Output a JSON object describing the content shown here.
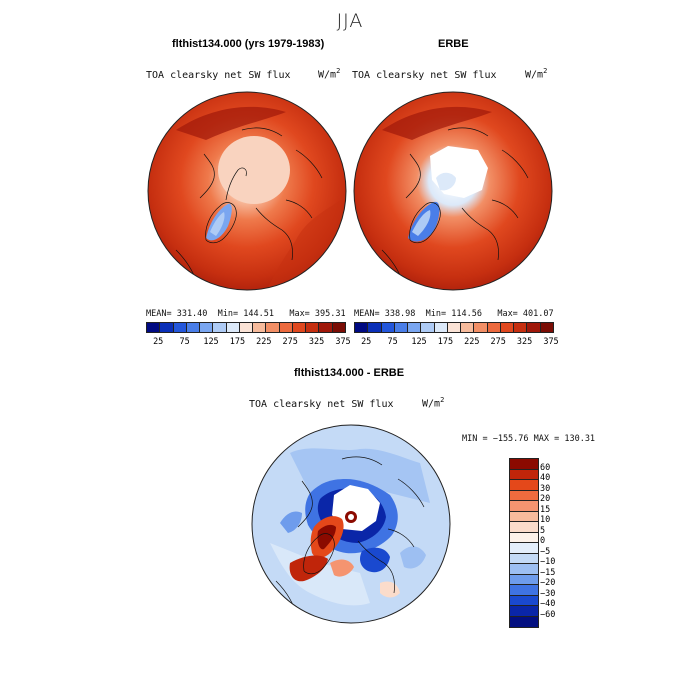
{
  "figure": {
    "season": "JJA",
    "units_base": "W/m",
    "units_exp": "2"
  },
  "panel_left": {
    "title": "flthist134.000 (yrs 1979-1983)",
    "subtitle": "TOA clearsky net SW flux",
    "mean": "MEAN= 331.40",
    "min": "Min= 144.51",
    "max": "Max= 395.31"
  },
  "panel_right": {
    "title": "ERBE",
    "subtitle": "TOA clearsky net SW flux",
    "mean": "MEAN= 338.98",
    "min": "Min= 114.56",
    "max": "Max= 401.07"
  },
  "panel_diff": {
    "title": "flthist134.000 - ERBE",
    "subtitle": "TOA clearsky net SW flux",
    "minmax": "MIN = −155.76 MAX = 130.31"
  },
  "colorbar_abs": {
    "colors": [
      "#000a82",
      "#0a2fb8",
      "#2457db",
      "#4a7ee8",
      "#7aa6f0",
      "#aecbf5",
      "#dce9f9",
      "#fbe3d6",
      "#f7bb9c",
      "#f28f66",
      "#ec6a3e",
      "#e0481f",
      "#c62f10",
      "#a0180a",
      "#7a0d05"
    ],
    "ticks": [
      "25",
      "75",
      "125",
      "175",
      "225",
      "275",
      "325",
      "375"
    ]
  },
  "colorbar_diff": {
    "colors": [
      "#8b0a00",
      "#c0250a",
      "#e4481a",
      "#f06b3e",
      "#f59470",
      "#f8bb9c",
      "#fbdccb",
      "#fdf2ea",
      "#e4eefb",
      "#c4daf6",
      "#9dbff2",
      "#6e9cec",
      "#3f73e3",
      "#1a49cf",
      "#0a26a8",
      "#030f80"
    ],
    "ticks": [
      "60",
      "40",
      "30",
      "20",
      "15",
      "10",
      "5",
      "0",
      "−5",
      "−10",
      "−15",
      "−20",
      "−30",
      "−40",
      "−60"
    ]
  }
}
